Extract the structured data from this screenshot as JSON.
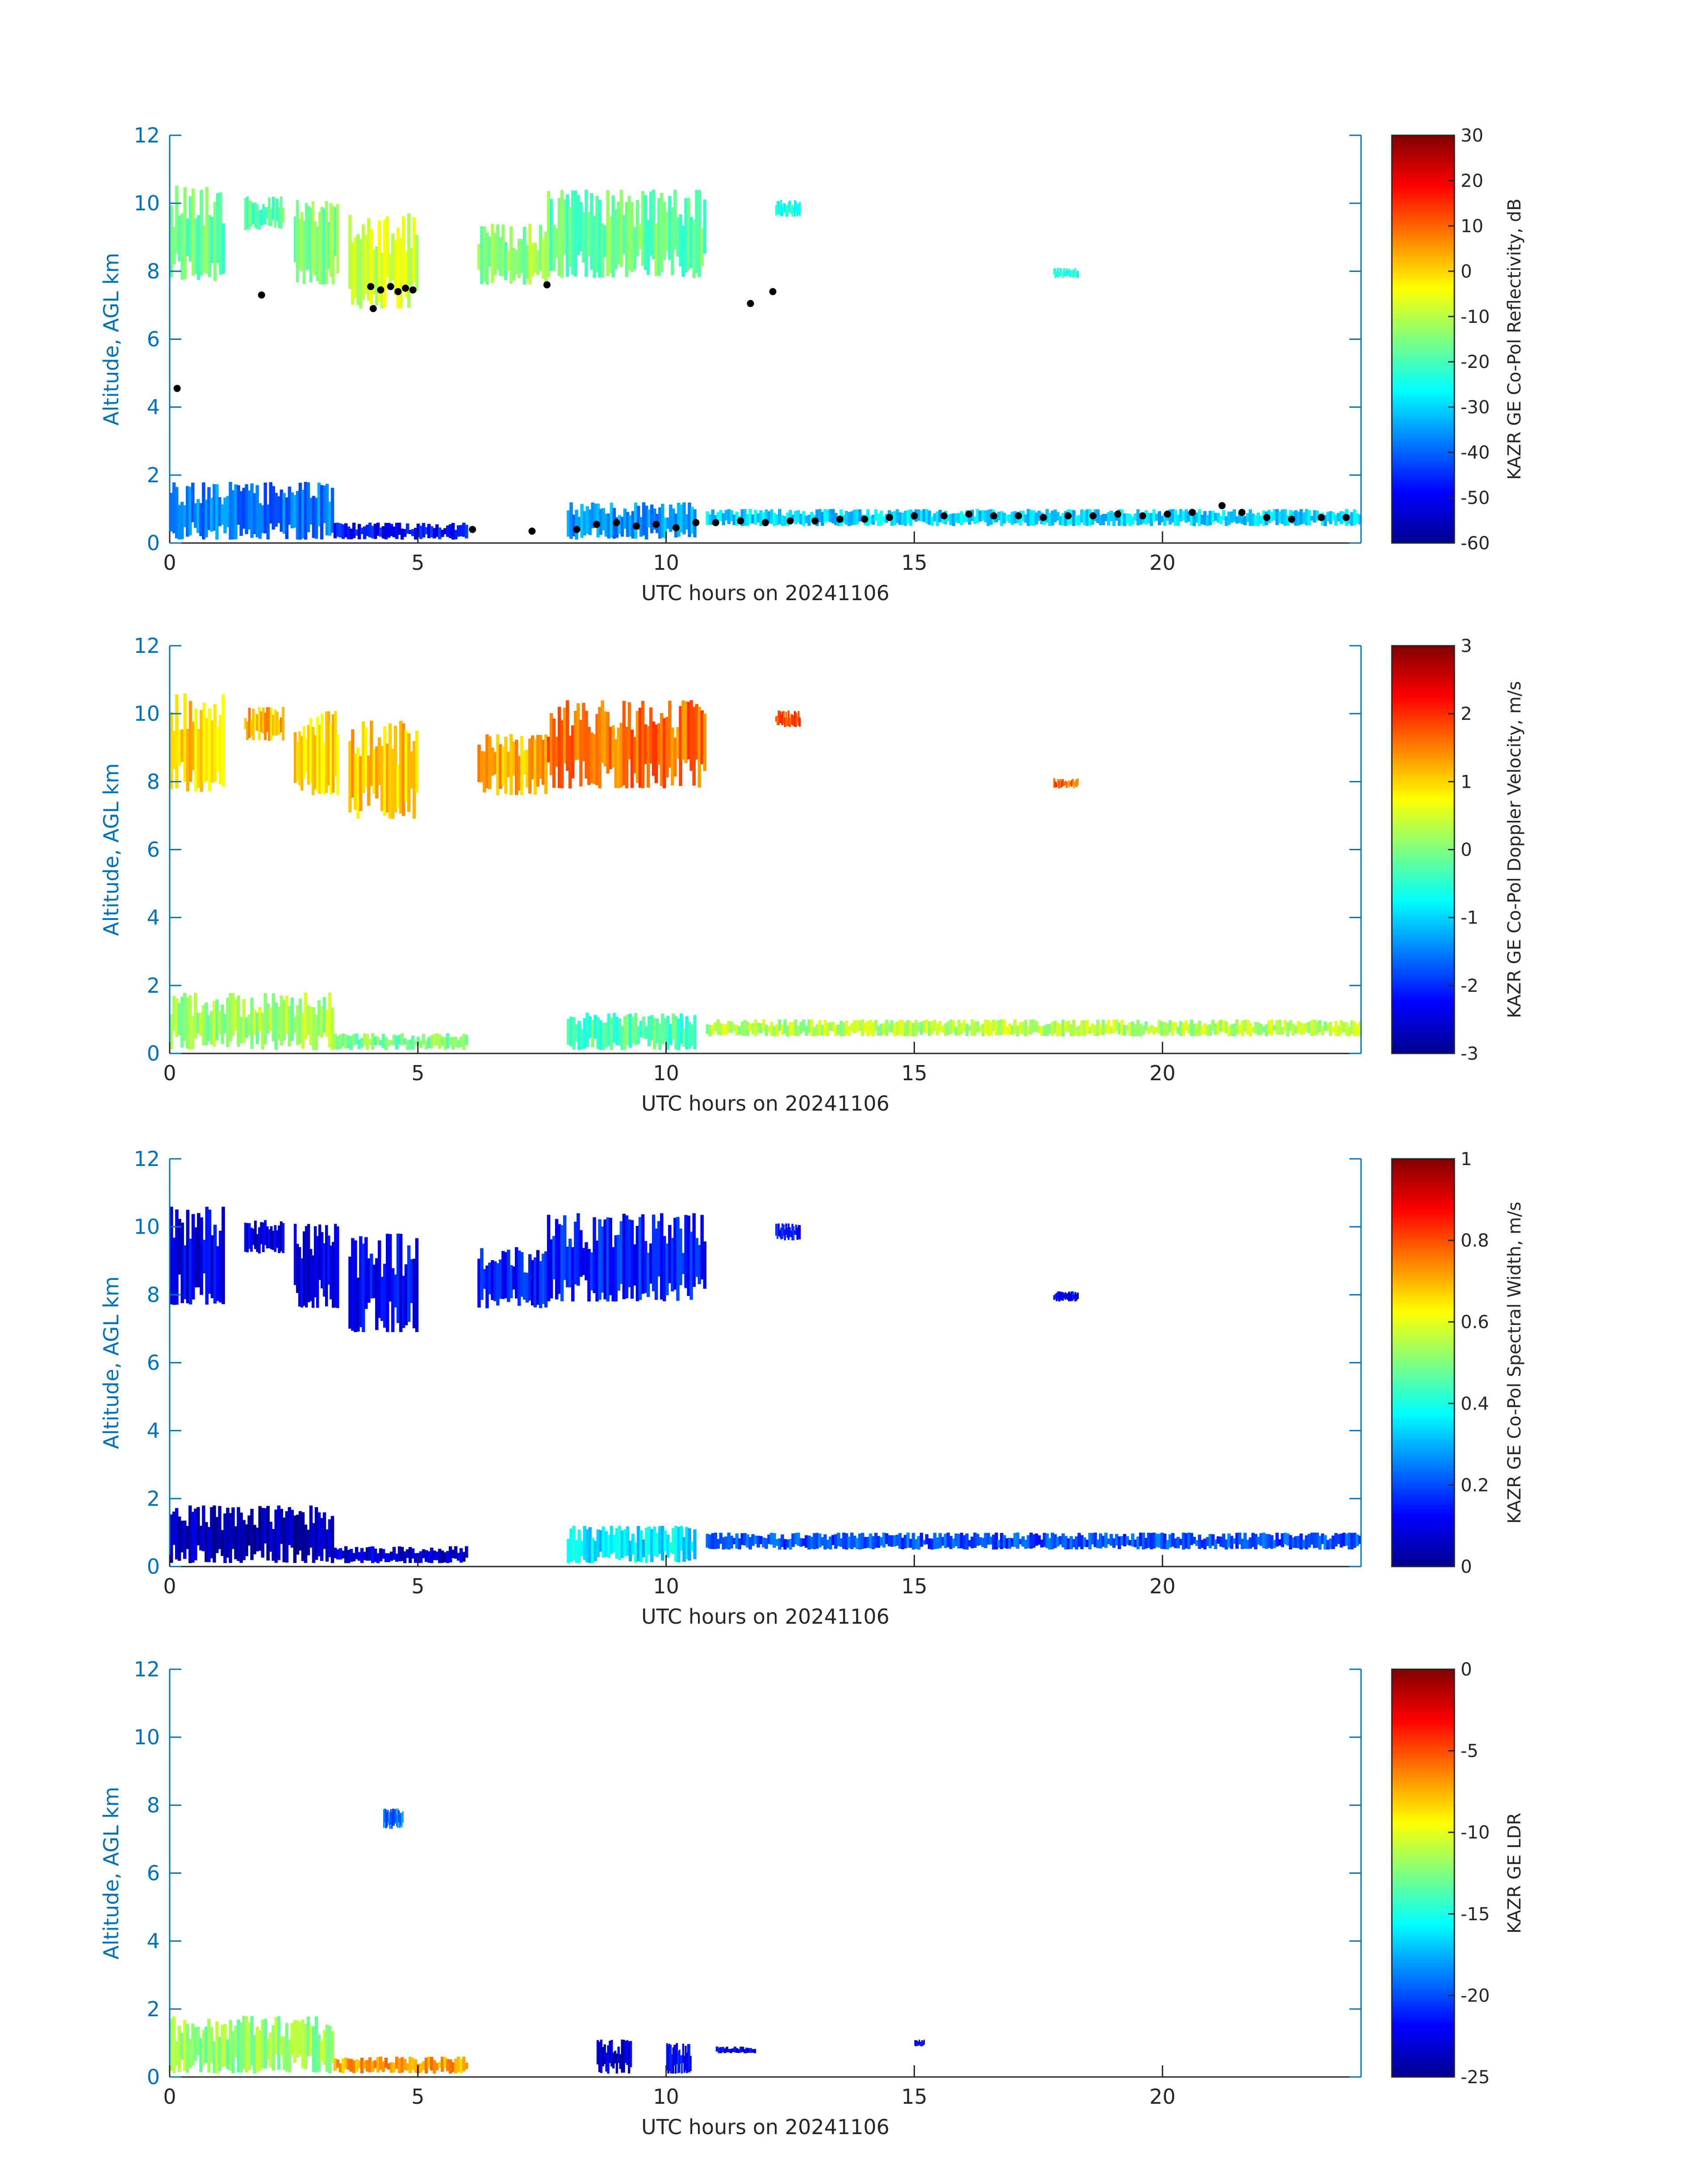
{
  "chart_data": [
    {
      "type": "heatmap",
      "xlabel": "UTC hours on 20241106",
      "ylabel": "Altitude, AGL km",
      "xlim": [
        0,
        24
      ],
      "ylim": [
        0,
        12
      ],
      "xticks": [
        0,
        5,
        10,
        15,
        20
      ],
      "yticks": [
        0,
        2,
        4,
        6,
        8,
        10,
        12
      ],
      "colorbar": {
        "label": "KAZR GE Co-Pol Reflectivity, dB",
        "range": [
          -60,
          30
        ],
        "ticks": [
          "-60",
          "-50",
          "-40",
          "-30",
          "-20",
          "-10",
          "0",
          "10",
          "20",
          "30"
        ],
        "colormap": "jet"
      },
      "value_range": [
        -60,
        30
      ],
      "cloud_regions": [
        {
          "x": [
            0.0,
            1.1
          ],
          "y": [
            7.7,
            10.6
          ],
          "value": -17
        },
        {
          "x": [
            1.5,
            2.3
          ],
          "y": [
            9.2,
            10.2
          ],
          "value": -19
        },
        {
          "x": [
            2.5,
            3.4
          ],
          "y": [
            7.6,
            10.1
          ],
          "value": -16
        },
        {
          "x": [
            3.6,
            5.0
          ],
          "y": [
            6.9,
            9.8
          ],
          "value": -8
        },
        {
          "x": [
            6.2,
            7.6
          ],
          "y": [
            7.6,
            9.4
          ],
          "value": -14
        },
        {
          "x": [
            7.6,
            10.8
          ],
          "y": [
            7.8,
            10.4
          ],
          "value": -17
        },
        {
          "x": [
            12.2,
            12.7
          ],
          "y": [
            9.6,
            10.1
          ],
          "value": -24
        },
        {
          "x": [
            17.8,
            18.3
          ],
          "y": [
            7.8,
            8.1
          ],
          "value": -25
        },
        {
          "x": [
            0.0,
            3.3
          ],
          "y": [
            0.1,
            1.8
          ],
          "value": -38
        },
        {
          "x": [
            3.3,
            6.0
          ],
          "y": [
            0.1,
            0.6
          ],
          "value": -48
        },
        {
          "x": [
            8.0,
            10.6
          ],
          "y": [
            0.1,
            1.2
          ],
          "value": -35
        },
        {
          "x": [
            10.8,
            24.0
          ],
          "y": [
            0.5,
            1.0
          ],
          "value": -30
        }
      ],
      "overlay_points": [
        {
          "x": 0.15,
          "y": 4.55
        },
        {
          "x": 1.85,
          "y": 7.3
        },
        {
          "x": 4.1,
          "y": 6.9
        },
        {
          "x": 4.05,
          "y": 7.55
        },
        {
          "x": 4.25,
          "y": 7.45
        },
        {
          "x": 4.45,
          "y": 7.55
        },
        {
          "x": 4.6,
          "y": 7.4
        },
        {
          "x": 4.75,
          "y": 7.5
        },
        {
          "x": 4.9,
          "y": 7.45
        },
        {
          "x": 7.6,
          "y": 7.6
        },
        {
          "x": 11.7,
          "y": 7.05
        },
        {
          "x": 12.15,
          "y": 7.4
        },
        {
          "x": 6.1,
          "y": 0.4
        },
        {
          "x": 7.3,
          "y": 0.35
        },
        {
          "x": 8.2,
          "y": 0.4
        },
        {
          "x": 8.6,
          "y": 0.55
        },
        {
          "x": 9.0,
          "y": 0.6
        },
        {
          "x": 9.4,
          "y": 0.5
        },
        {
          "x": 9.8,
          "y": 0.55
        },
        {
          "x": 10.2,
          "y": 0.45
        },
        {
          "x": 10.6,
          "y": 0.6
        },
        {
          "x": 11.0,
          "y": 0.6
        },
        {
          "x": 11.5,
          "y": 0.65
        },
        {
          "x": 12.0,
          "y": 0.6
        },
        {
          "x": 12.5,
          "y": 0.65
        },
        {
          "x": 13.0,
          "y": 0.65
        },
        {
          "x": 13.5,
          "y": 0.7
        },
        {
          "x": 14.0,
          "y": 0.7
        },
        {
          "x": 14.5,
          "y": 0.75
        },
        {
          "x": 15.0,
          "y": 0.8
        },
        {
          "x": 15.6,
          "y": 0.8
        },
        {
          "x": 16.1,
          "y": 0.85
        },
        {
          "x": 16.6,
          "y": 0.8
        },
        {
          "x": 17.1,
          "y": 0.8
        },
        {
          "x": 17.6,
          "y": 0.75
        },
        {
          "x": 18.1,
          "y": 0.8
        },
        {
          "x": 18.6,
          "y": 0.8
        },
        {
          "x": 19.1,
          "y": 0.85
        },
        {
          "x": 19.6,
          "y": 0.8
        },
        {
          "x": 20.1,
          "y": 0.85
        },
        {
          "x": 20.6,
          "y": 0.9
        },
        {
          "x": 21.2,
          "y": 1.1
        },
        {
          "x": 21.6,
          "y": 0.9
        },
        {
          "x": 22.1,
          "y": 0.75
        },
        {
          "x": 22.6,
          "y": 0.7
        },
        {
          "x": 23.2,
          "y": 0.75
        },
        {
          "x": 23.7,
          "y": 0.75
        }
      ]
    },
    {
      "type": "heatmap",
      "xlabel": "UTC hours on 20241106",
      "ylabel": "Altitude, AGL km",
      "xlim": [
        0,
        24
      ],
      "ylim": [
        0,
        12
      ],
      "xticks": [
        0,
        5,
        10,
        15,
        20
      ],
      "yticks": [
        0,
        2,
        4,
        6,
        8,
        10,
        12
      ],
      "colorbar": {
        "label": "KAZR GE Co-Pol Doppler Velocity, m/s",
        "range": [
          -3,
          3
        ],
        "ticks": [
          "-3",
          "-2",
          "-1",
          "0",
          "1",
          "2",
          "3"
        ],
        "colormap": "jet"
      },
      "value_range": [
        -3,
        3
      ],
      "cloud_regions": [
        {
          "x": [
            0.0,
            1.1
          ],
          "y": [
            7.7,
            10.6
          ],
          "value": 1.0
        },
        {
          "x": [
            1.5,
            2.3
          ],
          "y": [
            9.2,
            10.2
          ],
          "value": 1.2
        },
        {
          "x": [
            2.5,
            3.4
          ],
          "y": [
            7.6,
            10.1
          ],
          "value": 1.0
        },
        {
          "x": [
            3.6,
            5.0
          ],
          "y": [
            6.9,
            9.8
          ],
          "value": 1.1
        },
        {
          "x": [
            6.2,
            7.6
          ],
          "y": [
            7.6,
            9.4
          ],
          "value": 1.2
        },
        {
          "x": [
            7.6,
            10.8
          ],
          "y": [
            7.8,
            10.4
          ],
          "value": 1.6
        },
        {
          "x": [
            12.2,
            12.7
          ],
          "y": [
            9.6,
            10.1
          ],
          "value": 1.8
        },
        {
          "x": [
            17.8,
            18.3
          ],
          "y": [
            7.8,
            8.1
          ],
          "value": 1.6
        },
        {
          "x": [
            0.0,
            3.3
          ],
          "y": [
            0.1,
            1.8
          ],
          "value": 0.2
        },
        {
          "x": [
            3.3,
            6.0
          ],
          "y": [
            0.1,
            0.6
          ],
          "value": 0.0
        },
        {
          "x": [
            8.0,
            10.6
          ],
          "y": [
            0.1,
            1.2
          ],
          "value": -0.3
        },
        {
          "x": [
            10.8,
            24.0
          ],
          "y": [
            0.5,
            1.0
          ],
          "value": 0.3
        }
      ]
    },
    {
      "type": "heatmap",
      "xlabel": "UTC hours on 20241106",
      "ylabel": "Altitude, AGL km",
      "xlim": [
        0,
        24
      ],
      "ylim": [
        0,
        12
      ],
      "xticks": [
        0,
        5,
        10,
        15,
        20
      ],
      "yticks": [
        0,
        2,
        4,
        6,
        8,
        10,
        12
      ],
      "colorbar": {
        "label": "KAZR GE Co-Pol Spectral Width, m/s",
        "range": [
          0,
          1
        ],
        "ticks": [
          "0",
          "0.2",
          "0.4",
          "0.6",
          "0.8",
          "1"
        ],
        "colormap": "jet"
      },
      "value_range": [
        0,
        1
      ],
      "cloud_regions": [
        {
          "x": [
            0.0,
            1.1
          ],
          "y": [
            7.7,
            10.6
          ],
          "value": 0.1
        },
        {
          "x": [
            1.5,
            2.3
          ],
          "y": [
            9.2,
            10.2
          ],
          "value": 0.1
        },
        {
          "x": [
            2.5,
            3.4
          ],
          "y": [
            7.6,
            10.1
          ],
          "value": 0.1
        },
        {
          "x": [
            3.6,
            5.0
          ],
          "y": [
            6.9,
            9.8
          ],
          "value": 0.12
        },
        {
          "x": [
            6.2,
            7.6
          ],
          "y": [
            7.6,
            9.4
          ],
          "value": 0.15
        },
        {
          "x": [
            7.6,
            10.8
          ],
          "y": [
            7.8,
            10.4
          ],
          "value": 0.15
        },
        {
          "x": [
            12.2,
            12.7
          ],
          "y": [
            9.6,
            10.1
          ],
          "value": 0.15
        },
        {
          "x": [
            17.8,
            18.3
          ],
          "y": [
            7.8,
            8.1
          ],
          "value": 0.12
        },
        {
          "x": [
            0.0,
            3.3
          ],
          "y": [
            0.1,
            1.8
          ],
          "value": 0.05
        },
        {
          "x": [
            3.3,
            6.0
          ],
          "y": [
            0.1,
            0.6
          ],
          "value": 0.08
        },
        {
          "x": [
            8.0,
            10.6
          ],
          "y": [
            0.1,
            1.2
          ],
          "value": 0.35
        },
        {
          "x": [
            10.8,
            24.0
          ],
          "y": [
            0.5,
            1.0
          ],
          "value": 0.2
        }
      ]
    },
    {
      "type": "heatmap",
      "xlabel": "UTC hours on 20241106",
      "ylabel": "Altitude, AGL km",
      "xlim": [
        0,
        24
      ],
      "ylim": [
        0,
        12
      ],
      "xticks": [
        0,
        5,
        10,
        15,
        20
      ],
      "yticks": [
        0,
        2,
        4,
        6,
        8,
        10,
        12
      ],
      "colorbar": {
        "label": "KAZR GE LDR",
        "range": [
          -25,
          0
        ],
        "ticks": [
          "-25",
          "-20",
          "-15",
          "-10",
          "-5",
          "0"
        ],
        "colormap": "jet"
      },
      "value_range": [
        -25,
        0
      ],
      "cloud_regions": [
        {
          "x": [
            4.3,
            4.7
          ],
          "y": [
            7.3,
            7.9
          ],
          "value": -19
        },
        {
          "x": [
            0.0,
            3.3
          ],
          "y": [
            0.1,
            1.8
          ],
          "value": -12
        },
        {
          "x": [
            3.3,
            6.0
          ],
          "y": [
            0.1,
            0.6
          ],
          "value": -7
        },
        {
          "x": [
            8.6,
            9.3
          ],
          "y": [
            0.1,
            1.1
          ],
          "value": -23
        },
        {
          "x": [
            10.0,
            10.5
          ],
          "y": [
            0.1,
            1.0
          ],
          "value": -22
        },
        {
          "x": [
            11.0,
            11.8
          ],
          "y": [
            0.7,
            0.9
          ],
          "value": -22
        },
        {
          "x": [
            15.0,
            15.2
          ],
          "y": [
            0.9,
            1.1
          ],
          "value": -22
        }
      ]
    }
  ]
}
